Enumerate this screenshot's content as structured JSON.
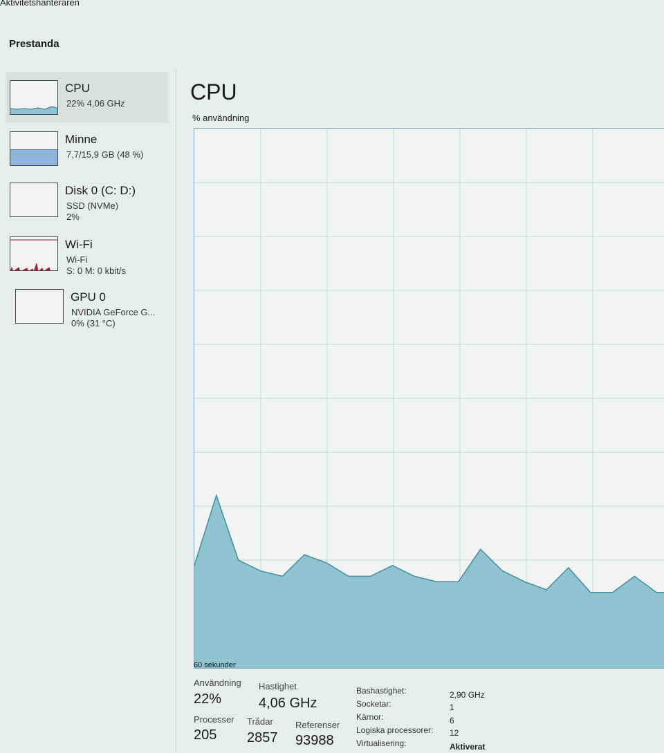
{
  "window": {
    "title": "Aktivitetshanteraren"
  },
  "section": "Prestanda",
  "sidebar": {
    "items": [
      {
        "name": "CPU",
        "line1": "22% 4,06 GHz",
        "line2": ""
      },
      {
        "name": "Minne",
        "line1": "7,7/15,9 GB (48 %)",
        "line2": "",
        "fill_percent": 48
      },
      {
        "name": "Disk 0 (C: D:)",
        "line1": "SSD (NVMe)",
        "line2": "2%"
      },
      {
        "name": "Wi-Fi",
        "line1": "Wi-Fi",
        "line2": "S: 0 M: 0 kbit/s"
      },
      {
        "name": "GPU 0",
        "line1": "NVIDIA GeForce G...",
        "line2": "0% (31 °C)"
      }
    ]
  },
  "main": {
    "title": "CPU",
    "graph_label": "% användning",
    "time_label": "60 sekunder"
  },
  "stats": {
    "usage_label": "Användning",
    "usage": "22%",
    "speed_label": "Hastighet",
    "speed": "4,06 GHz",
    "processes_label": "Processer",
    "processes": "205",
    "threads_label": "Trådar",
    "threads": "2857",
    "handles_label": "Referenser",
    "handles": "93988"
  },
  "specs": [
    {
      "k": "Bashastighet:",
      "v": "2,90 GHz"
    },
    {
      "k": "Socketar:",
      "v": "1"
    },
    {
      "k": "Kärnor:",
      "v": "6"
    },
    {
      "k": "Logiska processorer:",
      "v": "12"
    },
    {
      "k": "Virtualisering:",
      "v": "Aktiverat"
    }
  ],
  "chart_data": {
    "type": "area",
    "ylabel": "% användning",
    "xlabel": "60 sekunder",
    "ylim": [
      0,
      100
    ],
    "grid": true,
    "values": [
      19,
      32,
      20,
      18,
      17,
      21,
      19.5,
      17,
      17,
      19,
      17,
      16,
      16,
      22,
      18,
      16,
      14.5,
      18.6,
      14,
      14,
      17,
      14,
      14
    ],
    "colors": {
      "fill": "#8ec3cf",
      "line": "#3f8ea3",
      "grid": "#c5d3d6"
    }
  }
}
